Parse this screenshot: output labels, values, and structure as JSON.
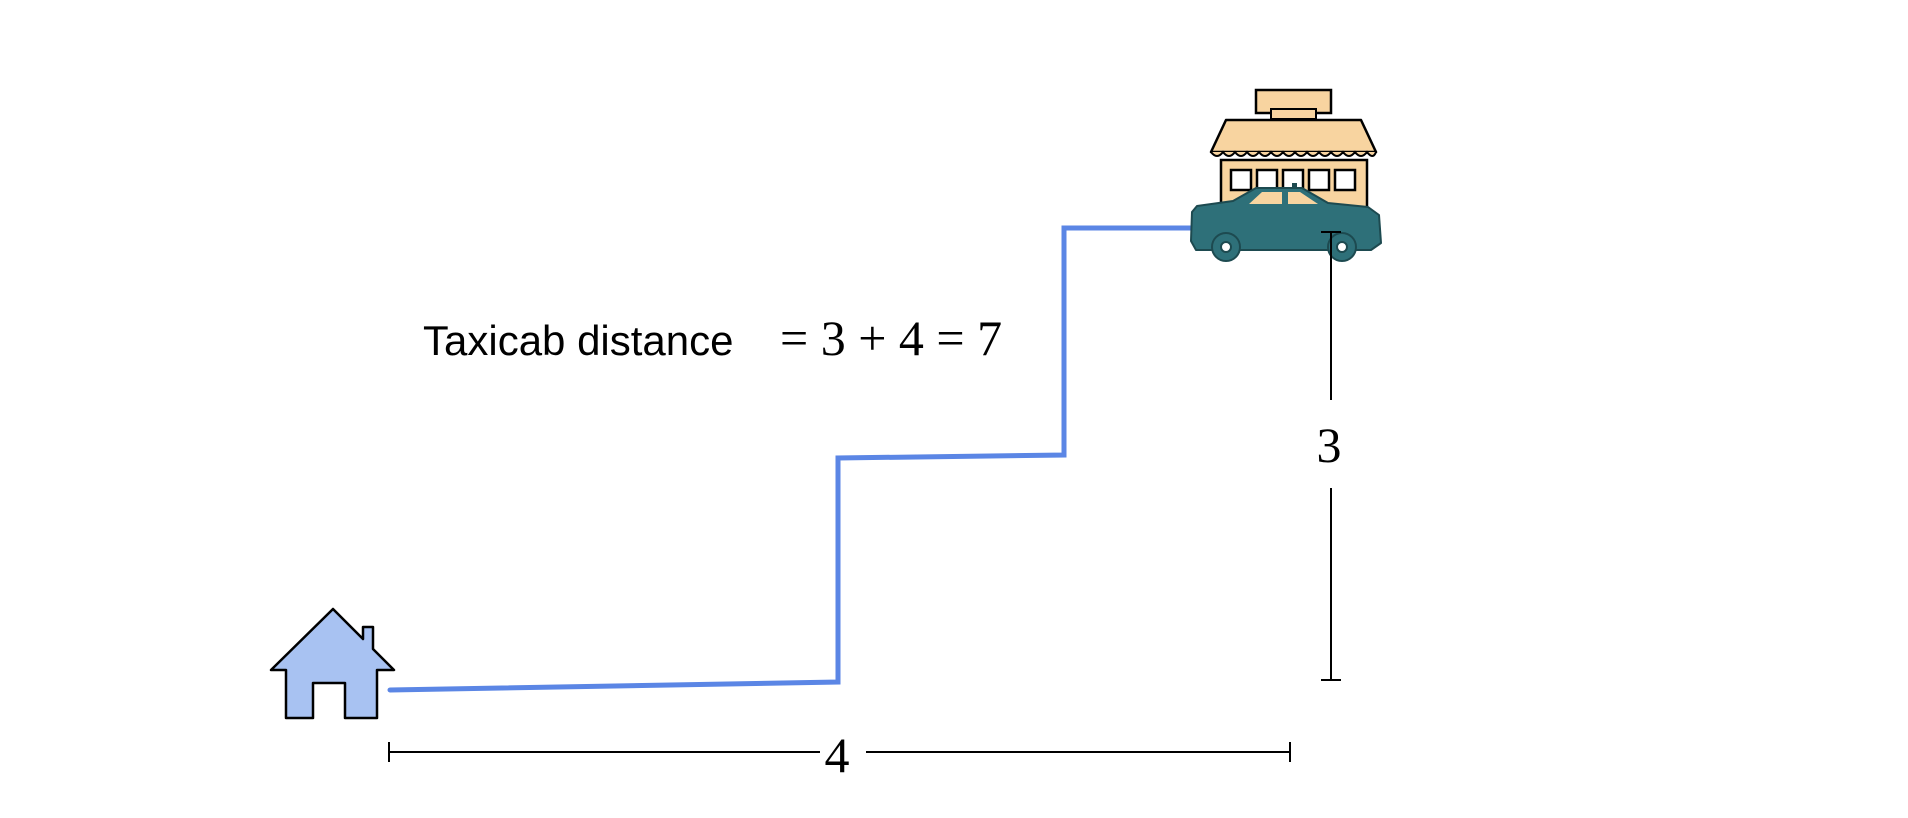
{
  "formula": {
    "label": "Taxicab distance",
    "expression": "= 3 + 4 = 7"
  },
  "dimensions": {
    "horizontal": "4",
    "vertical": "3"
  },
  "icons": {
    "start": "house-icon",
    "end": "shop-icon",
    "vehicle": "car-icon"
  },
  "colors": {
    "path": "#5b86e5",
    "house_fill": "#a8c2f2",
    "shop_fill": "#f8d4a0",
    "car_fill": "#2e7079",
    "line": "#000000"
  }
}
